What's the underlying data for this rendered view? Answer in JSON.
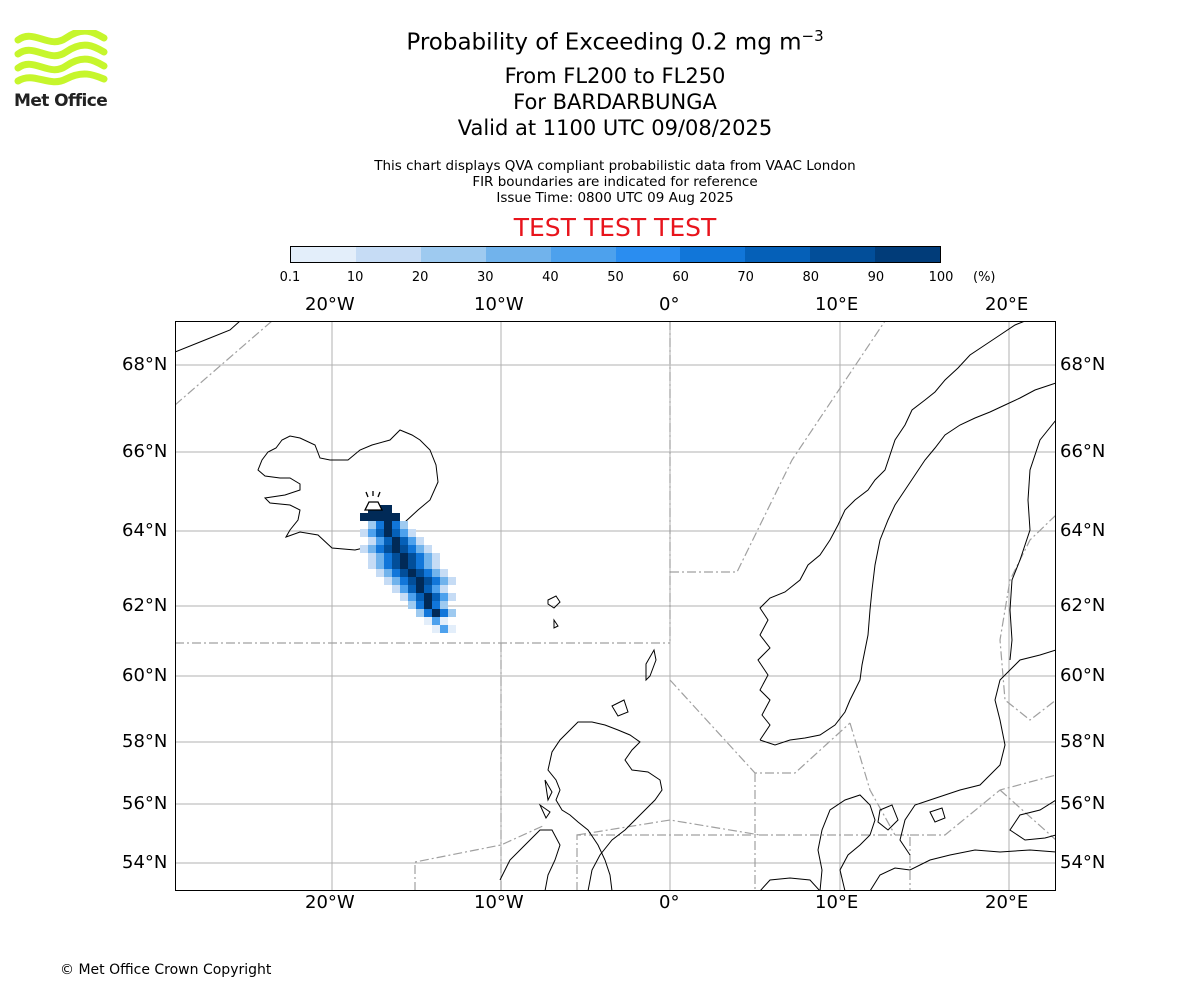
{
  "logo": {
    "text": "Met Office",
    "colors": {
      "waves": "#c6f62c",
      "text": "#222222"
    }
  },
  "title": {
    "line1_main": "Probability of Exceeding 0.2 mg m",
    "line1_sup": "−3",
    "line2": "From FL200 to FL250",
    "line3": "For BARDARBUNGA",
    "line4": "Valid at 1100 UTC 09/08/2025"
  },
  "subtitle": {
    "line1": "This chart displays QVA compliant probabilistic data from VAAC London",
    "line2": "FIR boundaries are indicated for reference",
    "line3": "Issue Time: 0800 UTC 09 Aug 2025"
  },
  "test_banner": {
    "text": "TEST TEST TEST",
    "color": "#e8141c"
  },
  "colorbar": {
    "ticks": [
      "0.1",
      "10",
      "20",
      "30",
      "40",
      "50",
      "60",
      "70",
      "80",
      "90",
      "100"
    ],
    "unit": "(%)",
    "colors": [
      "#e3eefa",
      "#c6dcf5",
      "#9ecaf0",
      "#71b3ec",
      "#4da1ed",
      "#2a8df0",
      "#1176d9",
      "#0560b8",
      "#024e99",
      "#013c79",
      "#012a57"
    ]
  },
  "map": {
    "lon_labels": [
      "20°W",
      "10°W",
      "0°",
      "10°E",
      "20°E"
    ],
    "lat_labels": [
      "68°N",
      "66°N",
      "64°N",
      "62°N",
      "60°N",
      "58°N",
      "56°N",
      "54°N"
    ],
    "volcano_icon": "volcano-icon",
    "volcano_name": "BARDARBUNGA",
    "plume_core_color": "#012a57"
  },
  "copyright": "© Met Office Crown Copyright"
}
